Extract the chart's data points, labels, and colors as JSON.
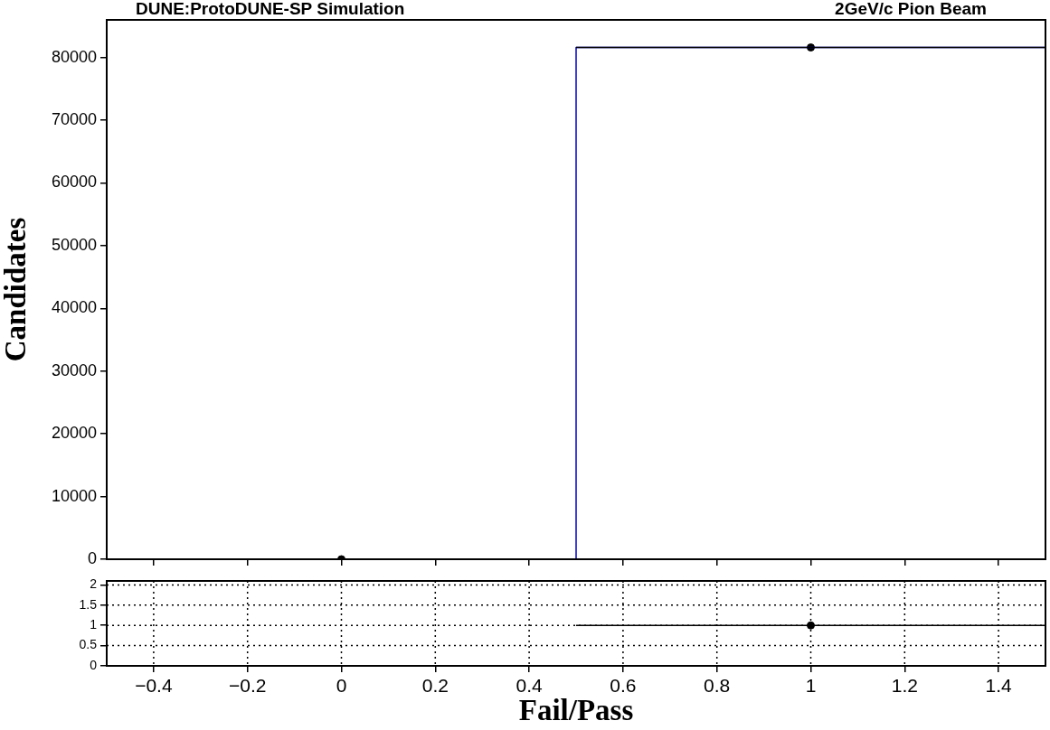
{
  "chart_data": [
    {
      "type": "histogram",
      "title": "DUNE:ProtoDUNE-SP Simulation",
      "annotations": [
        "2GeV/c Pion Beam"
      ],
      "ylabel": "Candidates",
      "bins": [
        -0.5,
        0.5,
        1.5
      ],
      "values": [
        0,
        81600
      ],
      "color": "#0000cc",
      "series": [
        {
          "type": "scatter",
          "x": [
            0,
            1
          ],
          "values": [
            0,
            81600
          ],
          "xerrors": [
            0.5,
            0.5
          ],
          "color": "#000000"
        }
      ],
      "xlim": [
        -0.5,
        1.5
      ],
      "xticks": [
        -0.4,
        -0.2,
        0,
        0.2,
        0.4,
        0.6,
        0.8,
        1,
        1.2,
        1.4
      ],
      "ylim": [
        0,
        86000
      ],
      "yticks": [
        0,
        10000,
        20000,
        30000,
        40000,
        50000,
        60000,
        70000,
        80000
      ],
      "tick_labels": "y",
      "marker": "circle"
    },
    {
      "type": "scatter",
      "xlabel": "Fail/Pass",
      "x": [
        1
      ],
      "values": [
        1
      ],
      "xerrors": [
        0.5
      ],
      "color": "#000000",
      "xlim": [
        -0.5,
        1.5
      ],
      "xticks": [
        -0.4,
        -0.2,
        0,
        0.2,
        0.4,
        0.6,
        0.8,
        1,
        1.2,
        1.4
      ],
      "ylim": [
        0,
        2.1
      ],
      "yticks": [
        0,
        0.5,
        1,
        1.5,
        2
      ],
      "grid": true,
      "marker": "circle"
    }
  ]
}
